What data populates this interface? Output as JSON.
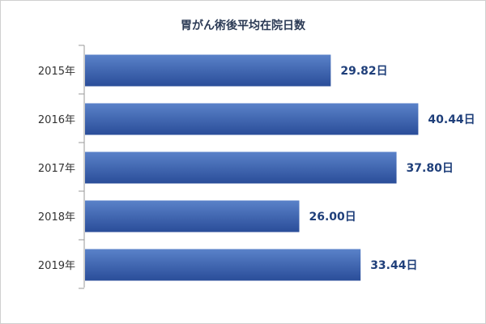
{
  "chart_data": {
    "type": "bar",
    "orientation": "horizontal",
    "title": "胃がん術後平均在院日数",
    "categories": [
      "2015年",
      "2016年",
      "2017年",
      "2018年",
      "2019年"
    ],
    "values": [
      29.82,
      40.44,
      37.8,
      26.0,
      33.44
    ],
    "value_labels": [
      "29.82日",
      "40.44日",
      "37.80日",
      "26.00日",
      "33.44日"
    ],
    "xlim": [
      0,
      46.2
    ],
    "grid": false,
    "legend": "none",
    "colors": {
      "bar_top": "#5a82c9",
      "bar_bottom": "#2a4d99",
      "value_text": "#1f3f7a"
    }
  }
}
